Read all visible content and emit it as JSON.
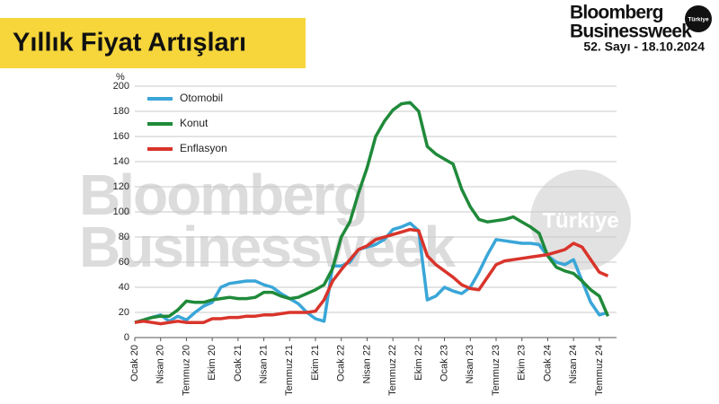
{
  "header": {
    "title": "Yıllık Fiyat Artışları",
    "brand_line1": "Bloomberg",
    "brand_line2": "Businessweek",
    "brand_badge": "Türkiye",
    "issue": "52. Sayı - 18.10.2024"
  },
  "watermark": {
    "line1": "Bloomberg",
    "line2": "Businessweek",
    "badge": "Türkiye"
  },
  "chart_data": {
    "type": "line",
    "y_unit_label": "%",
    "categories": [
      "Ocak 20",
      null,
      null,
      "Nisan 20",
      null,
      null,
      "Temmuz 20",
      null,
      null,
      "Ekim 20",
      null,
      null,
      "Ocak 21",
      null,
      null,
      "Nisan 21",
      null,
      null,
      "Temmuz 21",
      null,
      null,
      "Ekim 21",
      null,
      null,
      "Ocak 22",
      null,
      null,
      "Nisan 22",
      null,
      null,
      "Temmuz 22",
      null,
      null,
      "Ekim 22",
      null,
      null,
      "Ocak 23",
      null,
      null,
      "Nisan 23",
      null,
      null,
      "Temmuz 23",
      null,
      null,
      "Ekim 23",
      null,
      null,
      "Ocak 24",
      null,
      null,
      "Nisan 24",
      null,
      null,
      "Temmuz 24",
      null
    ],
    "series": [
      {
        "name": "Otomobil",
        "color": "#3aa6d8",
        "values": [
          12,
          14,
          16,
          18,
          13,
          17,
          14,
          20,
          25,
          28,
          40,
          43,
          44,
          45,
          45,
          42,
          40,
          35,
          31,
          27,
          20,
          15,
          13,
          57,
          57,
          60,
          70,
          72,
          74,
          78,
          86,
          88,
          91,
          85,
          30,
          33,
          40,
          37,
          35,
          40,
          52,
          66,
          78,
          77,
          76,
          75,
          75,
          74,
          65,
          60,
          58,
          62,
          45,
          28,
          18,
          20
        ]
      },
      {
        "name": "Konut",
        "color": "#1f8a3a",
        "values": [
          12,
          14,
          16,
          17,
          17,
          22,
          29,
          28,
          28,
          30,
          31,
          32,
          31,
          31,
          32,
          36,
          36,
          33,
          31,
          32,
          35,
          38,
          42,
          55,
          80,
          92,
          115,
          135,
          160,
          172,
          181,
          186,
          187,
          180,
          152,
          146,
          142,
          138,
          118,
          104,
          94,
          92,
          93,
          94,
          96,
          92,
          88,
          83,
          65,
          56,
          53,
          51,
          45,
          38,
          33,
          17
        ]
      },
      {
        "name": "Enflasyon",
        "color": "#d9342b",
        "values": [
          12,
          13,
          12,
          11,
          12,
          13,
          12,
          12,
          12,
          15,
          15,
          16,
          16,
          17,
          17,
          18,
          18,
          19,
          20,
          20,
          20,
          21,
          30,
          45,
          54,
          62,
          70,
          73,
          78,
          80,
          82,
          84,
          86,
          85,
          65,
          58,
          53,
          48,
          42,
          39,
          38,
          48,
          58,
          61,
          62,
          63,
          64,
          65,
          66,
          68,
          70,
          75,
          72,
          62,
          52,
          49
        ]
      }
    ],
    "ylim": [
      0,
      200
    ],
    "yticks": [
      0,
      20,
      40,
      60,
      80,
      100,
      120,
      140,
      160,
      180,
      200
    ],
    "grid": true,
    "legend": "top-left"
  }
}
